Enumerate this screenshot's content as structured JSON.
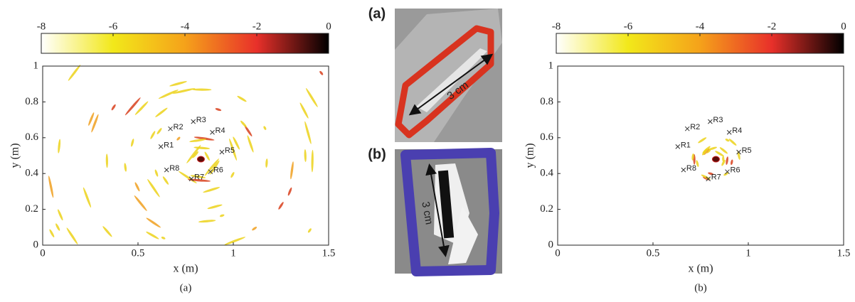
{
  "chart_data": [
    {
      "type": "heatmap",
      "caption": "(a)",
      "xlabel": "x (m)",
      "ylabel": "y (m)",
      "xlim": [
        0,
        1.5
      ],
      "ylim": [
        0,
        1
      ],
      "xticks": [
        0,
        0.5,
        1,
        1.5
      ],
      "yticks": [
        0,
        0.2,
        0.4,
        0.6,
        0.8,
        1
      ],
      "colorbar": {
        "lim": [
          -8,
          0
        ],
        "ticks": [
          -8,
          -6,
          -4,
          -2,
          0
        ],
        "colors": [
          "#ffffff",
          "#f2e81a",
          "#f5a21a",
          "#e8302a",
          "#000000"
        ]
      },
      "receivers": {
        "labels": [
          "R1",
          "R2",
          "R3",
          "R4",
          "R5",
          "R6",
          "R7",
          "R8"
        ],
        "x": [
          0.62,
          0.67,
          0.79,
          0.89,
          0.94,
          0.88,
          0.78,
          0.65
        ],
        "y": [
          0.55,
          0.65,
          0.69,
          0.63,
          0.52,
          0.41,
          0.37,
          0.42
        ]
      }
    },
    {
      "type": "heatmap",
      "caption": "(b)",
      "xlabel": "x (m)",
      "ylabel": "y (m)",
      "xlim": [
        0,
        1.5
      ],
      "ylim": [
        0,
        1
      ],
      "xticks": [
        0,
        0.5,
        1,
        1.5
      ],
      "yticks": [
        0,
        0.2,
        0.4,
        0.6,
        0.8,
        1
      ],
      "colorbar": {
        "lim": [
          -8,
          0
        ],
        "ticks": [
          -8,
          -6,
          -4,
          -2,
          0
        ],
        "colors": [
          "#ffffff",
          "#f2e81a",
          "#f5a21a",
          "#e8302a",
          "#000000"
        ]
      },
      "receivers": {
        "labels": [
          "R1",
          "R2",
          "R3",
          "R4",
          "R5",
          "R6",
          "R7",
          "R8"
        ],
        "x": [
          0.63,
          0.68,
          0.8,
          0.9,
          0.95,
          0.89,
          0.79,
          0.66
        ],
        "y": [
          0.55,
          0.65,
          0.69,
          0.63,
          0.52,
          0.41,
          0.37,
          0.42
        ]
      }
    }
  ],
  "photos": [
    {
      "label": "(a)",
      "scale_label": "3 cm"
    },
    {
      "label": "(b)",
      "scale_label": "3 cm"
    }
  ]
}
